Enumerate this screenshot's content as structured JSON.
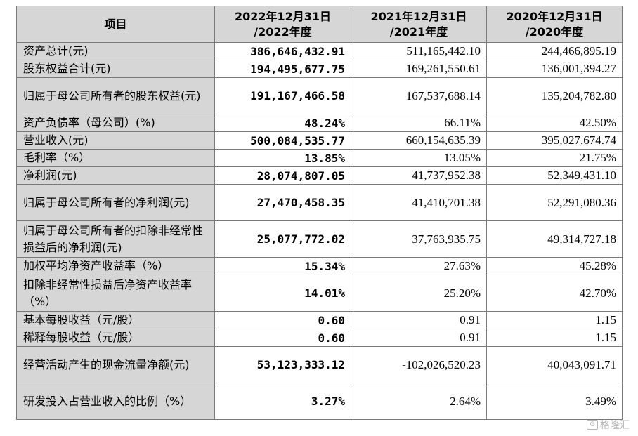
{
  "table": {
    "headers": [
      "项目",
      "2022年12月31日\n/2022年度",
      "2021年12月31日\n/2021年度",
      "2020年12月31日\n/2020年度"
    ],
    "rows": [
      {
        "label": "资产总计(元)",
        "v2022": "386,646,432.91",
        "v2021": "511,165,442.10",
        "v2020": "244,466,895.19",
        "tall": false
      },
      {
        "label": "股东权益合计(元)",
        "v2022": "194,495,677.75",
        "v2021": "169,261,550.61",
        "v2020": "136,001,394.27",
        "tall": false
      },
      {
        "label": "归属于母公司所有者的股东权益(元)",
        "v2022": "191,167,466.58",
        "v2021": "167,537,688.14",
        "v2020": "135,204,782.80",
        "tall": true
      },
      {
        "label": "资产负债率（母公司）(%)",
        "v2022": "48.24%",
        "v2021": "66.11%",
        "v2020": "42.50%",
        "tall": false
      },
      {
        "label": "营业收入(元)",
        "v2022": "500,084,535.77",
        "v2021": "660,154,635.39",
        "v2020": "395,027,674.74",
        "tall": false
      },
      {
        "label": "毛利率（%）",
        "v2022": "13.85%",
        "v2021": "13.05%",
        "v2020": "21.75%",
        "tall": false
      },
      {
        "label": "净利润(元)",
        "v2022": "28,074,807.05",
        "v2021": "41,737,952.38",
        "v2020": "52,349,431.10",
        "tall": false
      },
      {
        "label": "归属于母公司所有者的净利润(元)",
        "v2022": "27,470,458.35",
        "v2021": "41,410,701.38",
        "v2020": "52,291,080.36",
        "tall": true
      },
      {
        "label": "归属于母公司所有者的扣除非经常性损益后的净利润(元)",
        "v2022": "25,077,772.02",
        "v2021": "37,763,935.75",
        "v2020": "49,314,727.18",
        "tall": true
      },
      {
        "label": "加权平均净资产收益率（%）",
        "v2022": "15.34%",
        "v2021": "27.63%",
        "v2020": "45.28%",
        "tall": false
      },
      {
        "label": "扣除非经常性损益后净资产收益率（%）",
        "v2022": "14.01%",
        "v2021": "25.20%",
        "v2020": "42.70%",
        "tall": true
      },
      {
        "label": "基本每股收益（元/股）",
        "v2022": "0.60",
        "v2021": "0.91",
        "v2020": "1.15",
        "tall": false
      },
      {
        "label": "稀释每股收益（元/股）",
        "v2022": "0.60",
        "v2021": "0.91",
        "v2020": "1.15",
        "tall": false
      },
      {
        "label": "经营活动产生的现金流量净额(元)",
        "v2022": "53,123,333.12",
        "v2021": "-102,026,520.23",
        "v2020": "40,043,091.71",
        "tall": true
      },
      {
        "label": "研发投入占营业收入的比例（%）",
        "v2022": "3.27%",
        "v2021": "2.64%",
        "v2020": "3.49%",
        "tall": true
      }
    ]
  },
  "watermark": {
    "icon": "gelonghui-logo-icon",
    "text": "格隆汇"
  }
}
